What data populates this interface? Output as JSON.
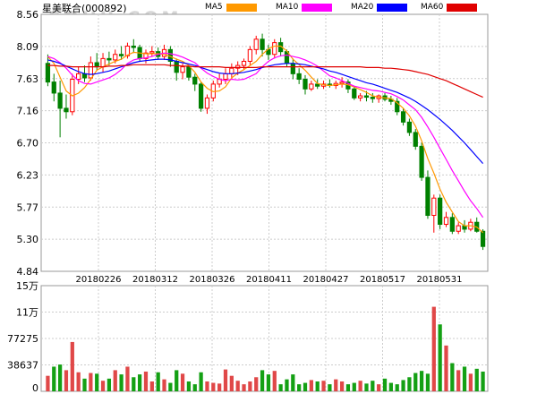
{
  "header": {
    "title": "星美联合(000892)"
  },
  "watermark": "SOHU.COM",
  "legend": [
    {
      "label": "MA5",
      "color": "#ff9900"
    },
    {
      "label": "MA10",
      "color": "#ff00ff"
    },
    {
      "label": "MA20",
      "color": "#0000ff"
    },
    {
      "label": "MA60",
      "color": "#e00000"
    }
  ],
  "colors": {
    "up": "#ff0000",
    "down": "#008000",
    "grid": "#cccccc",
    "volume_up": "#e04848",
    "volume_down": "#14a014"
  },
  "chart_data": [
    {
      "type": "candlestick",
      "title": "星美联合(000892)",
      "ylim": [
        4.84,
        8.56
      ],
      "y_ticks": [
        "8.56",
        "8.09",
        "7.63",
        "7.16",
        "6.70",
        "6.23",
        "5.77",
        "5.30",
        "4.84"
      ],
      "x_ticks": [
        "20180226",
        "20180312",
        "20180326",
        "20180411",
        "20180427",
        "20180517",
        "20180531"
      ],
      "ohlc": [
        [
          7.85,
          7.98,
          7.52,
          7.58
        ],
        [
          7.58,
          7.7,
          7.3,
          7.42
        ],
        [
          7.42,
          7.6,
          6.78,
          7.2
        ],
        [
          7.2,
          7.4,
          7.05,
          7.15
        ],
        [
          7.15,
          7.7,
          7.1,
          7.62
        ],
        [
          7.62,
          7.8,
          7.55,
          7.7
        ],
        [
          7.7,
          7.82,
          7.58,
          7.64
        ],
        [
          7.64,
          7.95,
          7.6,
          7.86
        ],
        [
          7.86,
          8.0,
          7.75,
          7.8
        ],
        [
          7.8,
          8.0,
          7.72,
          7.92
        ],
        [
          7.92,
          8.02,
          7.82,
          7.9
        ],
        [
          7.9,
          8.05,
          7.85,
          7.98
        ],
        [
          7.98,
          8.1,
          7.9,
          7.96
        ],
        [
          7.96,
          8.15,
          7.92,
          8.1
        ],
        [
          8.1,
          8.2,
          8.0,
          8.08
        ],
        [
          8.08,
          8.12,
          7.88,
          7.92
        ],
        [
          7.92,
          8.05,
          7.85,
          8.0
        ],
        [
          8.0,
          8.1,
          7.95,
          8.02
        ],
        [
          8.02,
          8.08,
          7.9,
          7.95
        ],
        [
          7.95,
          8.12,
          7.9,
          8.05
        ],
        [
          8.05,
          8.1,
          7.8,
          7.88
        ],
        [
          7.88,
          7.92,
          7.6,
          7.72
        ],
        [
          7.72,
          7.85,
          7.62,
          7.8
        ],
        [
          7.8,
          7.82,
          7.6,
          7.65
        ],
        [
          7.65,
          7.7,
          7.45,
          7.55
        ],
        [
          7.55,
          7.58,
          7.15,
          7.2
        ],
        [
          7.2,
          7.4,
          7.12,
          7.35
        ],
        [
          7.35,
          7.6,
          7.3,
          7.55
        ],
        [
          7.55,
          7.7,
          7.5,
          7.62
        ],
        [
          7.62,
          7.78,
          7.55,
          7.7
        ],
        [
          7.7,
          7.85,
          7.62,
          7.78
        ],
        [
          7.78,
          7.88,
          7.68,
          7.82
        ],
        [
          7.82,
          7.92,
          7.75,
          7.88
        ],
        [
          7.88,
          8.1,
          7.82,
          8.05
        ],
        [
          8.05,
          8.25,
          7.98,
          8.2
        ],
        [
          8.2,
          8.28,
          7.95,
          8.05
        ],
        [
          8.05,
          8.12,
          7.9,
          7.98
        ],
        [
          7.98,
          8.2,
          7.92,
          8.15
        ],
        [
          8.15,
          8.22,
          7.95,
          8.02
        ],
        [
          8.02,
          8.05,
          7.8,
          7.85
        ],
        [
          7.85,
          7.92,
          7.62,
          7.7
        ],
        [
          7.7,
          7.78,
          7.55,
          7.62
        ],
        [
          7.62,
          7.68,
          7.4,
          7.48
        ],
        [
          7.48,
          7.6,
          7.45,
          7.55
        ],
        [
          7.55,
          7.62,
          7.48,
          7.52
        ],
        [
          7.52,
          7.6,
          7.48,
          7.55
        ],
        [
          7.55,
          7.62,
          7.5,
          7.53
        ],
        [
          7.53,
          7.6,
          7.48,
          7.56
        ],
        [
          7.56,
          7.65,
          7.5,
          7.58
        ],
        [
          7.58,
          7.62,
          7.42,
          7.48
        ],
        [
          7.48,
          7.52,
          7.32,
          7.35
        ],
        [
          7.35,
          7.42,
          7.3,
          7.38
        ],
        [
          7.38,
          7.45,
          7.3,
          7.36
        ],
        [
          7.36,
          7.42,
          7.28,
          7.34
        ],
        [
          7.34,
          7.4,
          7.28,
          7.38
        ],
        [
          7.38,
          7.42,
          7.3,
          7.33
        ],
        [
          7.33,
          7.38,
          7.25,
          7.3
        ],
        [
          7.3,
          7.35,
          7.1,
          7.15
        ],
        [
          7.15,
          7.2,
          6.95,
          7.0
        ],
        [
          7.0,
          7.05,
          6.8,
          6.85
        ],
        [
          6.85,
          6.9,
          6.6,
          6.65
        ],
        [
          6.65,
          6.7,
          6.15,
          6.2
        ],
        [
          6.2,
          6.3,
          5.6,
          5.65
        ],
        [
          5.65,
          5.95,
          5.4,
          5.9
        ],
        [
          5.9,
          5.95,
          5.45,
          5.52
        ],
        [
          5.52,
          5.7,
          5.48,
          5.62
        ],
        [
          5.62,
          5.68,
          5.38,
          5.42
        ],
        [
          5.42,
          5.55,
          5.38,
          5.5
        ],
        [
          5.5,
          5.58,
          5.4,
          5.45
        ],
        [
          5.45,
          5.6,
          5.42,
          5.55
        ],
        [
          5.55,
          5.62,
          5.4,
          5.42
        ],
        [
          5.42,
          5.45,
          5.15,
          5.2
        ]
      ],
      "series": [
        {
          "name": "MA5",
          "values": [
            7.95,
            7.85,
            7.65,
            7.45,
            7.38,
            7.42,
            7.5,
            7.62,
            7.75,
            7.8,
            7.84,
            7.88,
            7.91,
            7.97,
            8.01,
            8.0,
            7.99,
            7.99,
            7.99,
            7.98,
            7.95,
            7.91,
            7.88,
            7.82,
            7.72,
            7.58,
            7.49,
            7.44,
            7.45,
            7.51,
            7.64,
            7.71,
            7.76,
            7.82,
            7.88,
            7.98,
            8.06,
            8.1,
            8.1,
            8.03,
            7.91,
            7.83,
            7.75,
            7.65,
            7.56,
            7.54,
            7.53,
            7.54,
            7.55,
            7.54,
            7.51,
            7.47,
            7.43,
            7.38,
            7.36,
            7.35,
            7.34,
            7.28,
            7.2,
            7.09,
            6.94,
            6.73,
            6.47,
            6.26,
            6.03,
            5.84,
            5.7,
            5.56,
            5.5,
            5.5,
            5.48,
            5.4
          ]
        },
        {
          "name": "MA10",
          "values": [
            7.95,
            7.92,
            7.86,
            7.78,
            7.68,
            7.6,
            7.56,
            7.55,
            7.58,
            7.61,
            7.64,
            7.69,
            7.76,
            7.85,
            7.9,
            7.92,
            7.93,
            7.95,
            7.98,
            8.0,
            7.99,
            7.97,
            7.94,
            7.9,
            7.86,
            7.78,
            7.71,
            7.66,
            7.62,
            7.6,
            7.62,
            7.61,
            7.62,
            7.66,
            7.7,
            7.8,
            7.88,
            7.93,
            7.96,
            7.97,
            7.95,
            7.93,
            7.9,
            7.86,
            7.81,
            7.74,
            7.67,
            7.64,
            7.6,
            7.56,
            7.52,
            7.5,
            7.48,
            7.46,
            7.45,
            7.43,
            7.41,
            7.37,
            7.32,
            7.25,
            7.18,
            7.07,
            6.93,
            6.78,
            6.62,
            6.46,
            6.3,
            6.15,
            6.0,
            5.86,
            5.75,
            5.62
          ]
        },
        {
          "name": "MA20",
          "values": [
            7.9,
            7.88,
            7.85,
            7.81,
            7.77,
            7.73,
            7.7,
            7.69,
            7.7,
            7.72,
            7.74,
            7.77,
            7.8,
            7.83,
            7.86,
            7.88,
            7.89,
            7.9,
            7.91,
            7.91,
            7.9,
            7.88,
            7.86,
            7.84,
            7.82,
            7.79,
            7.76,
            7.73,
            7.71,
            7.7,
            7.7,
            7.71,
            7.72,
            7.74,
            7.76,
            7.79,
            7.81,
            7.83,
            7.84,
            7.85,
            7.85,
            7.84,
            7.83,
            7.81,
            7.79,
            7.77,
            7.74,
            7.72,
            7.69,
            7.66,
            7.63,
            7.6,
            7.57,
            7.55,
            7.52,
            7.49,
            7.46,
            7.43,
            7.39,
            7.35,
            7.3,
            7.24,
            7.18,
            7.11,
            7.04,
            6.96,
            6.88,
            6.79,
            6.7,
            6.6,
            6.5,
            6.4
          ]
        },
        {
          "name": "MA60",
          "values": [
            7.82,
            7.82,
            7.81,
            7.81,
            7.8,
            7.8,
            7.8,
            7.8,
            7.8,
            7.8,
            7.81,
            7.81,
            7.82,
            7.82,
            7.83,
            7.83,
            7.83,
            7.83,
            7.83,
            7.83,
            7.82,
            7.82,
            7.81,
            7.81,
            7.8,
            7.8,
            7.8,
            7.8,
            7.8,
            7.79,
            7.79,
            7.79,
            7.79,
            7.79,
            7.79,
            7.8,
            7.8,
            7.8,
            7.8,
            7.8,
            7.8,
            7.8,
            7.8,
            7.8,
            7.8,
            7.8,
            7.8,
            7.8,
            7.8,
            7.8,
            7.8,
            7.8,
            7.79,
            7.79,
            7.79,
            7.78,
            7.78,
            7.77,
            7.76,
            7.75,
            7.73,
            7.71,
            7.69,
            7.66,
            7.63,
            7.6,
            7.56,
            7.52,
            7.48,
            7.44,
            7.4,
            7.36
          ]
        }
      ]
    },
    {
      "type": "bar",
      "ylabel": "",
      "ylim": [
        0,
        150000
      ],
      "y_ticks": [
        "15万",
        "11万",
        "77275",
        "38637",
        "0"
      ],
      "up": [
        true,
        false,
        false,
        true,
        true,
        true,
        false,
        true,
        false,
        true,
        false,
        true,
        false,
        true,
        false,
        false,
        true,
        true,
        false,
        true,
        false,
        false,
        true,
        false,
        false,
        false,
        true,
        true,
        true,
        true,
        true,
        true,
        true,
        true,
        true,
        false,
        false,
        true,
        false,
        false,
        false,
        false,
        false,
        true,
        false,
        true,
        false,
        true,
        true,
        false,
        false,
        true,
        false,
        false,
        true,
        false,
        false,
        false,
        false,
        false,
        false,
        false,
        false,
        true,
        false,
        true,
        false,
        true,
        false,
        true,
        false,
        false
      ],
      "values": [
        22000,
        35000,
        38000,
        30000,
        70000,
        27000,
        18000,
        26000,
        25000,
        15000,
        18000,
        30000,
        24000,
        35000,
        20000,
        24000,
        28000,
        14000,
        27000,
        17000,
        12000,
        30000,
        25000,
        14000,
        10000,
        27000,
        14000,
        12000,
        11000,
        31000,
        22000,
        15000,
        10000,
        14000,
        20000,
        30000,
        24000,
        29000,
        10000,
        17000,
        24000,
        10000,
        12000,
        16000,
        14000,
        15000,
        10000,
        17000,
        14000,
        10000,
        12000,
        15000,
        11000,
        15000,
        10000,
        18000,
        12000,
        10000,
        16000,
        20000,
        26000,
        29000,
        25000,
        120000,
        95000,
        65000,
        40000,
        30000,
        35000,
        25000,
        32000,
        28000
      ]
    }
  ]
}
